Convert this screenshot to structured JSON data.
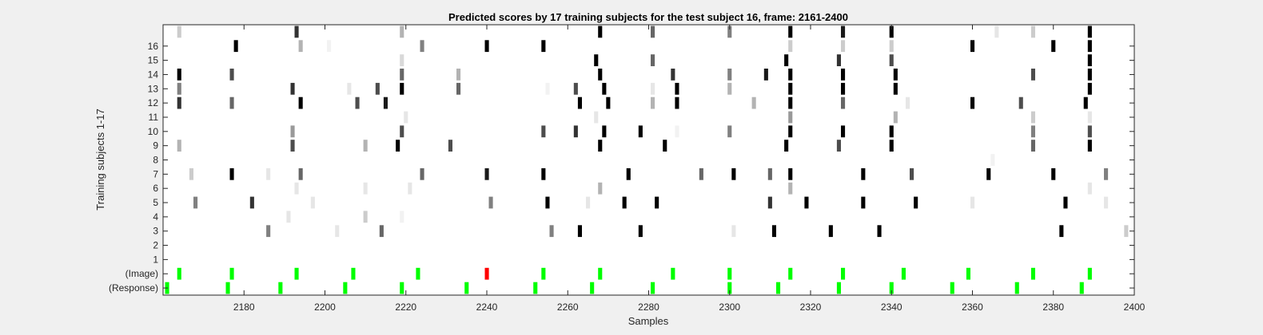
{
  "chart_data": {
    "type": "heatmap",
    "title": "Predicted scores by 17 training subjects for the test subject 16, frame: 2161-2400",
    "xlabel": "Samples",
    "ylabel": "Training subjects 1-17",
    "xlim": [
      2161,
      2400
    ],
    "x_ticks": [
      2180,
      2200,
      2220,
      2240,
      2260,
      2280,
      2300,
      2320,
      2340,
      2360,
      2380,
      2400
    ],
    "rows": [
      "(Response)",
      "(Image)",
      "1",
      "2",
      "3",
      "4",
      "5",
      "6",
      "7",
      "8",
      "9",
      "10",
      "11",
      "12",
      "13",
      "14",
      "15",
      "16",
      "17"
    ],
    "y_tick_labels": [
      "(Response)",
      "(Image)",
      "1",
      "2",
      "3",
      "4",
      "5",
      "6",
      "7",
      "8",
      "9",
      "10",
      "11",
      "12",
      "13",
      "14",
      "15",
      "16"
    ],
    "grid": false,
    "legend": "none",
    "colors": {
      "response": "#00ff00",
      "image_correct": "#00ff00",
      "image_incorrect": "#ff0000",
      "score": "grayscale (white=0, black=1)"
    },
    "response_marks": [
      2161,
      2176,
      2189,
      2205,
      2219,
      2235,
      2252,
      2266,
      2281,
      2300,
      2312,
      2327,
      2340,
      2355,
      2371,
      2387
    ],
    "image_marks": [
      {
        "x": 2164,
        "color": "#00ff00"
      },
      {
        "x": 2177,
        "color": "#00ff00"
      },
      {
        "x": 2193,
        "color": "#00ff00"
      },
      {
        "x": 2207,
        "color": "#00ff00"
      },
      {
        "x": 2223,
        "color": "#00ff00"
      },
      {
        "x": 2240,
        "color": "#ff0000"
      },
      {
        "x": 2254,
        "color": "#00ff00"
      },
      {
        "x": 2268,
        "color": "#00ff00"
      },
      {
        "x": 2286,
        "color": "#00ff00"
      },
      {
        "x": 2300,
        "color": "#00ff00"
      },
      {
        "x": 2315,
        "color": "#00ff00"
      },
      {
        "x": 2328,
        "color": "#00ff00"
      },
      {
        "x": 2343,
        "color": "#00ff00"
      },
      {
        "x": 2359,
        "color": "#00ff00"
      },
      {
        "x": 2375,
        "color": "#00ff00"
      },
      {
        "x": 2389,
        "color": "#00ff00"
      }
    ],
    "scores": [
      {
        "row": "17",
        "points": [
          [
            2164,
            0.2
          ],
          [
            2193,
            0.8
          ],
          [
            2219,
            0.3
          ],
          [
            2268,
            1
          ],
          [
            2281,
            0.6
          ],
          [
            2300,
            0.5
          ],
          [
            2315,
            1
          ],
          [
            2328,
            0.9
          ],
          [
            2340,
            1
          ],
          [
            2366,
            0.1
          ],
          [
            2375,
            0.2
          ],
          [
            2389,
            1
          ]
        ]
      },
      {
        "row": "16",
        "points": [
          [
            2178,
            1
          ],
          [
            2194,
            0.3
          ],
          [
            2201,
            0.05
          ],
          [
            2224,
            0.5
          ],
          [
            2240,
            1
          ],
          [
            2254,
            1
          ],
          [
            2315,
            0.2
          ],
          [
            2328,
            0.2
          ],
          [
            2340,
            0.2
          ],
          [
            2360,
            1
          ],
          [
            2380,
            1
          ],
          [
            2389,
            1
          ]
        ]
      },
      {
        "row": "15",
        "points": [
          [
            2219,
            0.15
          ],
          [
            2267,
            1
          ],
          [
            2281,
            0.6
          ],
          [
            2314,
            1
          ],
          [
            2327,
            0.8
          ],
          [
            2340,
            0.7
          ],
          [
            2389,
            1
          ]
        ]
      },
      {
        "row": "14",
        "points": [
          [
            2164,
            1
          ],
          [
            2177,
            0.7
          ],
          [
            2219,
            0.6
          ],
          [
            2233,
            0.3
          ],
          [
            2268,
            1
          ],
          [
            2286,
            0.8
          ],
          [
            2300,
            0.5
          ],
          [
            2309,
            0.9
          ],
          [
            2315,
            1
          ],
          [
            2328,
            1
          ],
          [
            2341,
            1
          ],
          [
            2375,
            0.7
          ],
          [
            2389,
            1
          ]
        ]
      },
      {
        "row": "13",
        "points": [
          [
            2164,
            0.5
          ],
          [
            2192,
            0.8
          ],
          [
            2206,
            0.1
          ],
          [
            2213,
            0.7
          ],
          [
            2219,
            1
          ],
          [
            2233,
            0.6
          ],
          [
            2255,
            0.05
          ],
          [
            2262,
            0.7
          ],
          [
            2269,
            1
          ],
          [
            2281,
            0.1
          ],
          [
            2287,
            1
          ],
          [
            2300,
            0.3
          ],
          [
            2315,
            1
          ],
          [
            2328,
            1
          ],
          [
            2341,
            1
          ],
          [
            2389,
            1
          ]
        ]
      },
      {
        "row": "12",
        "points": [
          [
            2164,
            0.8
          ],
          [
            2177,
            0.6
          ],
          [
            2194,
            1
          ],
          [
            2208,
            0.7
          ],
          [
            2215,
            0.9
          ],
          [
            2263,
            1
          ],
          [
            2270,
            1
          ],
          [
            2281,
            0.3
          ],
          [
            2287,
            1
          ],
          [
            2306,
            0.3
          ],
          [
            2315,
            1
          ],
          [
            2328,
            0.6
          ],
          [
            2344,
            0.1
          ],
          [
            2360,
            1
          ],
          [
            2372,
            0.7
          ],
          [
            2388,
            1
          ]
        ]
      },
      {
        "row": "11",
        "points": [
          [
            2220,
            0.1
          ],
          [
            2267,
            0.1
          ],
          [
            2315,
            0.4
          ],
          [
            2341,
            0.3
          ],
          [
            2375,
            0.2
          ],
          [
            2389,
            0.1
          ]
        ]
      },
      {
        "row": "10",
        "points": [
          [
            2192,
            0.4
          ],
          [
            2219,
            0.7
          ],
          [
            2254,
            0.7
          ],
          [
            2262,
            0.8
          ],
          [
            2269,
            1
          ],
          [
            2278,
            1
          ],
          [
            2287,
            0.05
          ],
          [
            2300,
            0.5
          ],
          [
            2315,
            1
          ],
          [
            2328,
            1
          ],
          [
            2340,
            1
          ],
          [
            2375,
            0.5
          ],
          [
            2389,
            0.7
          ]
        ]
      },
      {
        "row": "9",
        "points": [
          [
            2164,
            0.3
          ],
          [
            2192,
            0.7
          ],
          [
            2210,
            0.3
          ],
          [
            2218,
            1
          ],
          [
            2231,
            0.7
          ],
          [
            2268,
            1
          ],
          [
            2284,
            1
          ],
          [
            2314,
            1
          ],
          [
            2327,
            0.7
          ],
          [
            2340,
            1
          ],
          [
            2375,
            0.6
          ],
          [
            2389,
            1
          ]
        ]
      },
      {
        "row": "8",
        "points": [
          [
            2365,
            0.05
          ]
        ]
      },
      {
        "row": "7",
        "points": [
          [
            2167,
            0.2
          ],
          [
            2177,
            1
          ],
          [
            2186,
            0.1
          ],
          [
            2194,
            0.6
          ],
          [
            2224,
            0.6
          ],
          [
            2240,
            0.9
          ],
          [
            2254,
            1
          ],
          [
            2275,
            1
          ],
          [
            2293,
            0.6
          ],
          [
            2301,
            1
          ],
          [
            2310,
            0.6
          ],
          [
            2315,
            1
          ],
          [
            2333,
            1
          ],
          [
            2345,
            0.7
          ],
          [
            2364,
            1
          ],
          [
            2380,
            1
          ],
          [
            2393,
            0.5
          ]
        ]
      },
      {
        "row": "6",
        "points": [
          [
            2193,
            0.1
          ],
          [
            2210,
            0.1
          ],
          [
            2221,
            0.1
          ],
          [
            2268,
            0.3
          ],
          [
            2315,
            0.3
          ],
          [
            2389,
            0.1
          ]
        ]
      },
      {
        "row": "5",
        "points": [
          [
            2168,
            0.5
          ],
          [
            2182,
            0.8
          ],
          [
            2197,
            0.1
          ],
          [
            2241,
            0.5
          ],
          [
            2255,
            1
          ],
          [
            2265,
            0.1
          ],
          [
            2274,
            1
          ],
          [
            2282,
            1
          ],
          [
            2310,
            0.8
          ],
          [
            2319,
            1
          ],
          [
            2333,
            1
          ],
          [
            2346,
            1
          ],
          [
            2360,
            0.1
          ],
          [
            2383,
            1
          ],
          [
            2393,
            0.1
          ]
        ]
      },
      {
        "row": "4",
        "points": [
          [
            2191,
            0.1
          ],
          [
            2210,
            0.2
          ],
          [
            2219,
            0.05
          ]
        ]
      },
      {
        "row": "3",
        "points": [
          [
            2186,
            0.5
          ],
          [
            2203,
            0.1
          ],
          [
            2214,
            0.6
          ],
          [
            2256,
            0.5
          ],
          [
            2263,
            1
          ],
          [
            2278,
            1
          ],
          [
            2301,
            0.1
          ],
          [
            2311,
            1
          ],
          [
            2325,
            1
          ],
          [
            2337,
            1
          ],
          [
            2382,
            1
          ],
          [
            2398,
            0.2
          ]
        ]
      }
    ]
  }
}
